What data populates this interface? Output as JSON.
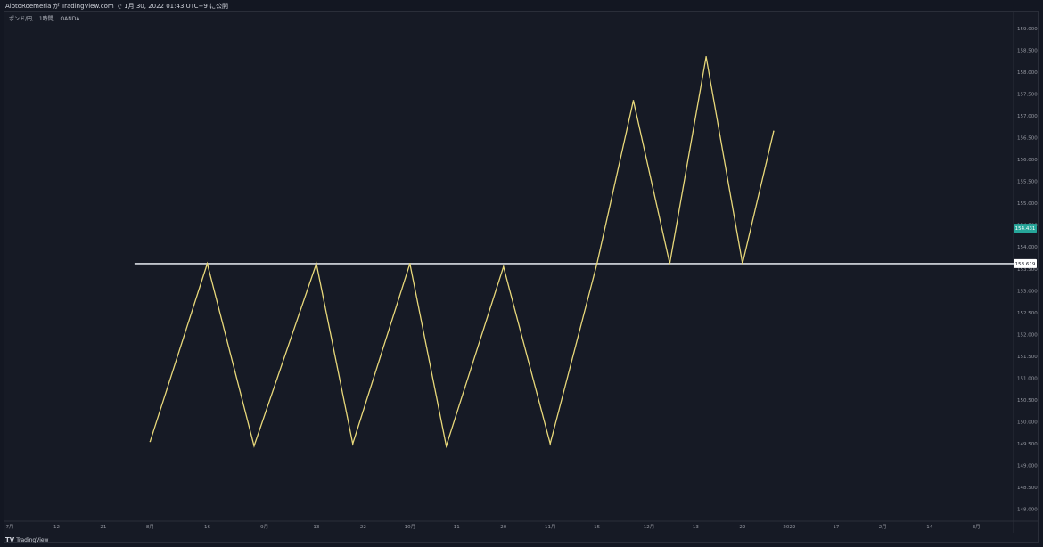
{
  "header": {
    "author": "AlotoRoemeria",
    "published_text": "が TradingView.com で 1月 30, 2022 01:43 UTC+9 に公開"
  },
  "symbol": {
    "name": "ポンド/円",
    "interval": "1時間",
    "broker": "OANDA"
  },
  "branding": {
    "logo_mark": "TV",
    "logo_text": "TradingView"
  },
  "colors": {
    "background": "#131722",
    "series": "#e8d87a",
    "hline": "#d9dce3",
    "current_price_badge": "#26a69a",
    "axis_text": "#9598a1"
  },
  "chart_data": {
    "type": "line",
    "y_axis": {
      "position": "right",
      "ticks": [
        148.0,
        148.5,
        149.0,
        149.5,
        150.0,
        150.5,
        151.0,
        151.5,
        152.0,
        152.5,
        153.0,
        153.5,
        154.0,
        154.5,
        155.0,
        155.5,
        156.0,
        156.5,
        157.0,
        157.5,
        158.0,
        158.5,
        159.0
      ],
      "ylim": [
        147.75,
        159.2
      ]
    },
    "x_axis": {
      "tick_labels": [
        "7月",
        "12",
        "21",
        "8月",
        "16",
        "9月",
        "13",
        "22",
        "10月",
        "11",
        "20",
        "11月",
        "15",
        "12月",
        "13",
        "22",
        "2022",
        "17",
        "2月",
        "14",
        "3月"
      ],
      "tick_index": [
        0,
        9,
        18,
        27,
        38,
        49,
        59,
        68,
        77,
        86,
        95,
        104,
        113,
        123,
        132,
        141,
        150,
        159,
        168,
        177,
        186
      ]
    },
    "series": [
      {
        "x": [
          27,
          38,
          47,
          59,
          66,
          77,
          84,
          95,
          104,
          113,
          120,
          127,
          134,
          141,
          147
        ],
        "values": [
          149.55,
          153.62,
          149.45,
          153.62,
          149.5,
          153.62,
          149.45,
          153.55,
          149.5,
          153.62,
          157.35,
          153.62,
          158.35,
          153.62,
          156.65
        ]
      }
    ],
    "horizontal_line": {
      "value": 153.619,
      "label": "153.619",
      "x_start": 24
    },
    "current_price": {
      "value": 154.431,
      "label": "154.431"
    },
    "grid": false,
    "legend": "none"
  }
}
